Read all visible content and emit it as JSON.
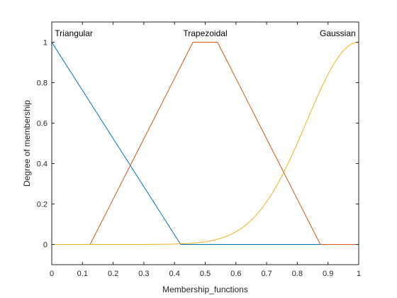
{
  "chart_data": {
    "type": "line",
    "title": "",
    "xlabel": "Membership_functions",
    "ylabel": "Degree of membership",
    "xlim": [
      0,
      1
    ],
    "ylim": [
      -0.1,
      1.1
    ],
    "grid": false,
    "xticks": [
      0,
      0.1,
      0.2,
      0.3,
      0.4,
      0.5,
      0.6,
      0.7,
      0.8,
      0.9,
      1
    ],
    "xtick_labels": [
      "0",
      "0.1",
      "0.2",
      "0.3",
      "0.4",
      "0.5",
      "0.6",
      "0.7",
      "0.8",
      "0.9",
      "1"
    ],
    "yticks": [
      0,
      0.2,
      0.4,
      0.6,
      0.8,
      1
    ],
    "ytick_labels": [
      "0",
      "0.2",
      "0.4",
      "0.6",
      "0.8",
      "1"
    ],
    "series": [
      {
        "name": "Triangular",
        "color": "#0072BD",
        "shape": "triangular",
        "params": [
          -0.42,
          0,
          0.42
        ],
        "label_at": [
          0.01,
          1.03
        ]
      },
      {
        "name": "Trapezoidal",
        "color": "#D95319",
        "shape": "trapezoidal",
        "params": [
          0.125,
          0.46,
          0.54,
          0.875
        ],
        "label_at": [
          0.5,
          1.03
        ]
      },
      {
        "name": "Gaussian",
        "color": "#EDB120",
        "shape": "gaussian",
        "params": [
          1.0,
          0.17
        ],
        "label_at": [
          0.99,
          1.03
        ]
      }
    ]
  }
}
